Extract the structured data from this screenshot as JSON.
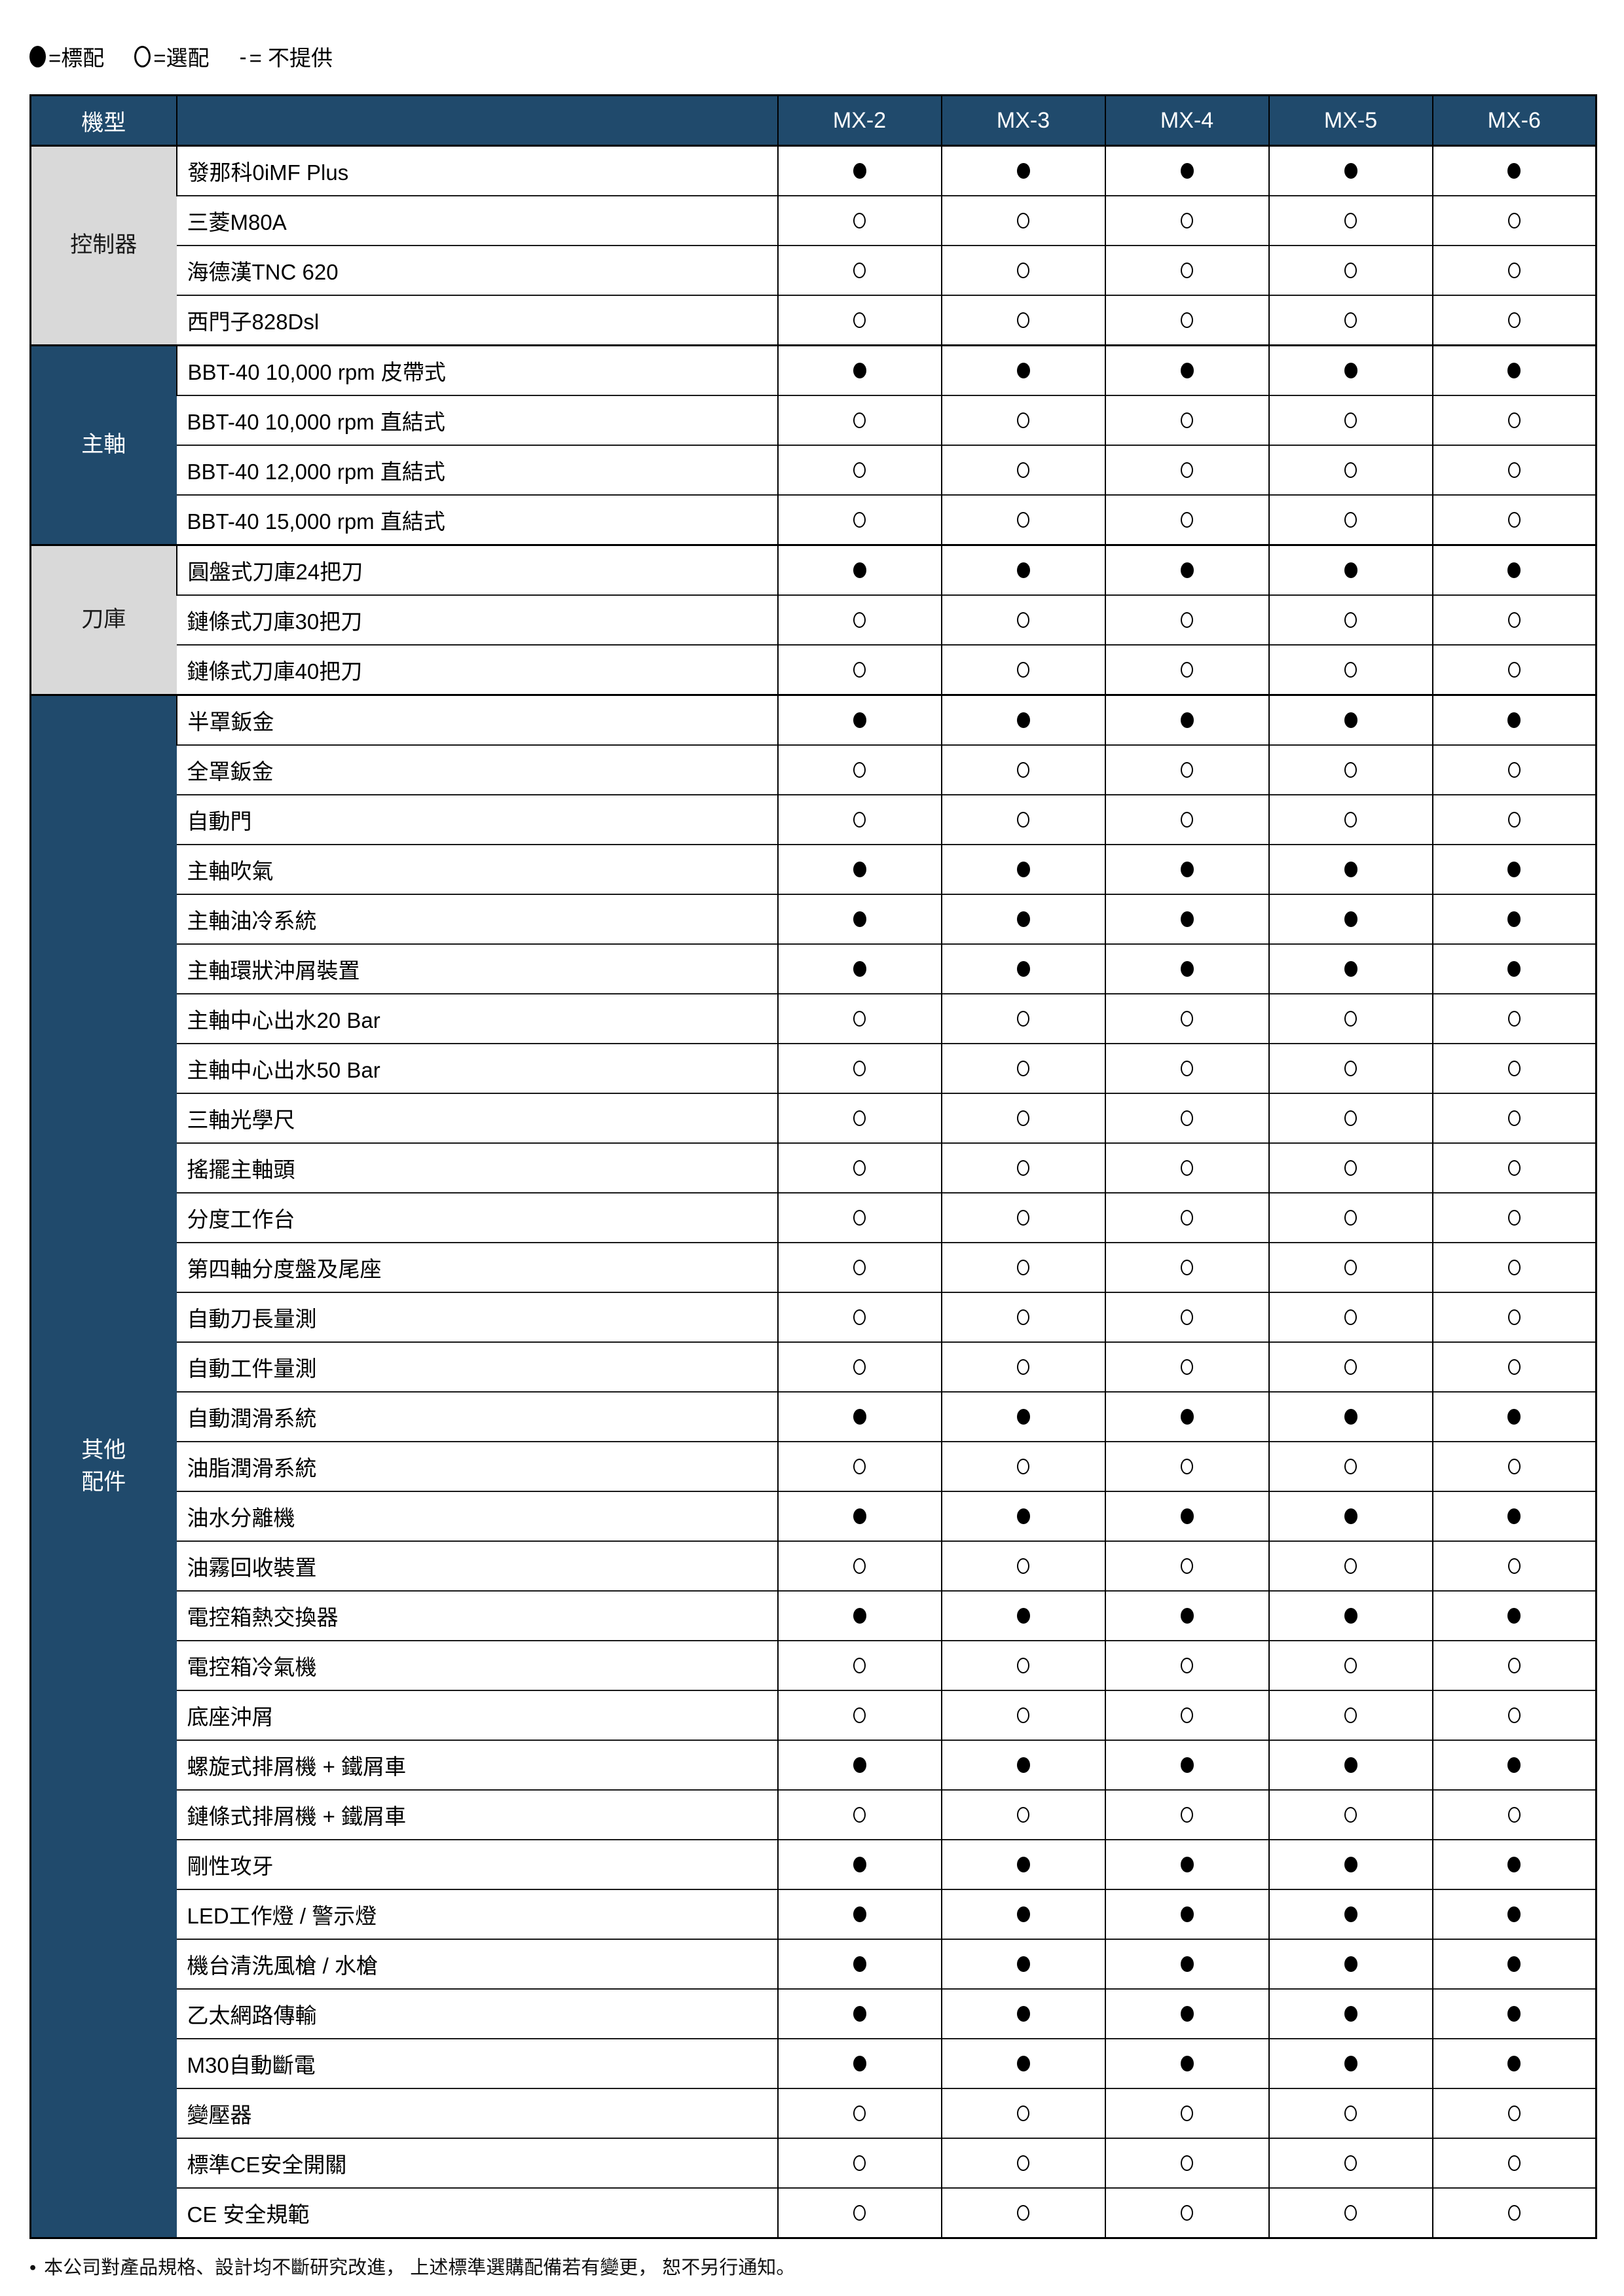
{
  "colors": {
    "navy": "#204A6C",
    "gray": "#D9D9D9",
    "border": "#000000",
    "text": "#000000",
    "white": "#FFFFFF"
  },
  "symbols": {
    "std_meaning": "標配",
    "opt_meaning": "選配",
    "na_meaning": "不提供",
    "std_glyph": "●",
    "opt_glyph": "○",
    "na_glyph": "-"
  },
  "legend": {
    "items": [
      {
        "icon": "filled-circle",
        "label": "=標配"
      },
      {
        "icon": "hollow-circle",
        "label": "=選配"
      },
      {
        "icon": "dash",
        "symbol": "-",
        "label": "= 不提供"
      }
    ]
  },
  "table": {
    "header": {
      "model_label": "機型",
      "models": [
        "MX-2",
        "MX-3",
        "MX-4",
        "MX-5",
        "MX-6"
      ]
    },
    "groups": [
      {
        "name": "控制器",
        "tone": "gray",
        "rows": [
          {
            "label": "發那科0iMF Plus",
            "values": [
              "std",
              "std",
              "std",
              "std",
              "std"
            ]
          },
          {
            "label": "三菱M80A",
            "values": [
              "opt",
              "opt",
              "opt",
              "opt",
              "opt"
            ]
          },
          {
            "label": "海德漢TNC 620",
            "values": [
              "opt",
              "opt",
              "opt",
              "opt",
              "opt"
            ]
          },
          {
            "label": "西門子828Dsl",
            "values": [
              "opt",
              "opt",
              "opt",
              "opt",
              "opt"
            ]
          }
        ]
      },
      {
        "name": "主軸",
        "tone": "navy",
        "rows": [
          {
            "label": "BBT-40 10,000 rpm 皮帶式",
            "values": [
              "std",
              "std",
              "std",
              "std",
              "std"
            ]
          },
          {
            "label": "BBT-40 10,000 rpm 直結式",
            "values": [
              "opt",
              "opt",
              "opt",
              "opt",
              "opt"
            ]
          },
          {
            "label": "BBT-40 12,000 rpm 直結式",
            "values": [
              "opt",
              "opt",
              "opt",
              "opt",
              "opt"
            ]
          },
          {
            "label": "BBT-40 15,000 rpm 直結式",
            "values": [
              "opt",
              "opt",
              "opt",
              "opt",
              "opt"
            ]
          }
        ]
      },
      {
        "name": "刀庫",
        "tone": "gray",
        "rows": [
          {
            "label": "圓盤式刀庫24把刀",
            "values": [
              "std",
              "std",
              "std",
              "std",
              "std"
            ]
          },
          {
            "label": "鏈條式刀庫30把刀",
            "values": [
              "opt",
              "opt",
              "opt",
              "opt",
              "opt"
            ]
          },
          {
            "label": "鏈條式刀庫40把刀",
            "values": [
              "opt",
              "opt",
              "opt",
              "opt",
              "opt"
            ]
          }
        ]
      },
      {
        "name": "其他\n配件",
        "tone": "navy",
        "rows": [
          {
            "label": "半罩鈑金",
            "values": [
              "std",
              "std",
              "std",
              "std",
              "std"
            ]
          },
          {
            "label": "全罩鈑金",
            "values": [
              "opt",
              "opt",
              "opt",
              "opt",
              "opt"
            ]
          },
          {
            "label": "自動門",
            "values": [
              "opt",
              "opt",
              "opt",
              "opt",
              "opt"
            ]
          },
          {
            "label": "主軸吹氣",
            "values": [
              "std",
              "std",
              "std",
              "std",
              "std"
            ]
          },
          {
            "label": "主軸油冷系統",
            "values": [
              "std",
              "std",
              "std",
              "std",
              "std"
            ]
          },
          {
            "label": "主軸環狀沖屑裝置",
            "values": [
              "std",
              "std",
              "std",
              "std",
              "std"
            ]
          },
          {
            "label": "主軸中心出水20 Bar",
            "values": [
              "opt",
              "opt",
              "opt",
              "opt",
              "opt"
            ]
          },
          {
            "label": "主軸中心出水50 Bar",
            "values": [
              "opt",
              "opt",
              "opt",
              "opt",
              "opt"
            ]
          },
          {
            "label": "三軸光學尺",
            "values": [
              "opt",
              "opt",
              "opt",
              "opt",
              "opt"
            ]
          },
          {
            "label": "搖擺主軸頭",
            "values": [
              "opt",
              "opt",
              "opt",
              "opt",
              "opt"
            ]
          },
          {
            "label": "分度工作台",
            "values": [
              "opt",
              "opt",
              "opt",
              "opt",
              "opt"
            ]
          },
          {
            "label": "第四軸分度盤及尾座",
            "values": [
              "opt",
              "opt",
              "opt",
              "opt",
              "opt"
            ]
          },
          {
            "label": "自動刀長量測",
            "values": [
              "opt",
              "opt",
              "opt",
              "opt",
              "opt"
            ]
          },
          {
            "label": "自動工件量測",
            "values": [
              "opt",
              "opt",
              "opt",
              "opt",
              "opt"
            ]
          },
          {
            "label": "自動潤滑系統",
            "values": [
              "std",
              "std",
              "std",
              "std",
              "std"
            ]
          },
          {
            "label": "油脂潤滑系統",
            "values": [
              "opt",
              "opt",
              "opt",
              "opt",
              "opt"
            ]
          },
          {
            "label": "油水分離機",
            "values": [
              "std",
              "std",
              "std",
              "std",
              "std"
            ]
          },
          {
            "label": "油霧回收裝置",
            "values": [
              "opt",
              "opt",
              "opt",
              "opt",
              "opt"
            ]
          },
          {
            "label": "電控箱熱交換器",
            "values": [
              "std",
              "std",
              "std",
              "std",
              "std"
            ]
          },
          {
            "label": "電控箱冷氣機",
            "values": [
              "opt",
              "opt",
              "opt",
              "opt",
              "opt"
            ]
          },
          {
            "label": "底座沖屑",
            "values": [
              "opt",
              "opt",
              "opt",
              "opt",
              "opt"
            ]
          },
          {
            "label": "螺旋式排屑機 + 鐵屑車",
            "values": [
              "std",
              "std",
              "std",
              "std",
              "std"
            ]
          },
          {
            "label": "鏈條式排屑機 + 鐵屑車",
            "values": [
              "opt",
              "opt",
              "opt",
              "opt",
              "opt"
            ]
          },
          {
            "label": "剛性攻牙",
            "values": [
              "std",
              "std",
              "std",
              "std",
              "std"
            ]
          },
          {
            "label": "LED工作燈 / 警示燈",
            "values": [
              "std",
              "std",
              "std",
              "std",
              "std"
            ]
          },
          {
            "label": "機台清洗風槍 / 水槍",
            "values": [
              "std",
              "std",
              "std",
              "std",
              "std"
            ]
          },
          {
            "label": "乙太網路傳輸",
            "values": [
              "std",
              "std",
              "std",
              "std",
              "std"
            ]
          },
          {
            "label": "M30自動斷電",
            "values": [
              "std",
              "std",
              "std",
              "std",
              "std"
            ]
          },
          {
            "label": "變壓器",
            "values": [
              "opt",
              "opt",
              "opt",
              "opt",
              "opt"
            ]
          },
          {
            "label": "標準CE安全開關",
            "values": [
              "opt",
              "opt",
              "opt",
              "opt",
              "opt"
            ]
          },
          {
            "label": "CE 安全規範",
            "values": [
              "opt",
              "opt",
              "opt",
              "opt",
              "opt"
            ]
          }
        ]
      }
    ]
  },
  "footer": {
    "bullet": "•",
    "note": "本公司對產品規格、設計均不斷研究改進， 上述標準選購配備若有變更， 恕不另行通知。"
  }
}
